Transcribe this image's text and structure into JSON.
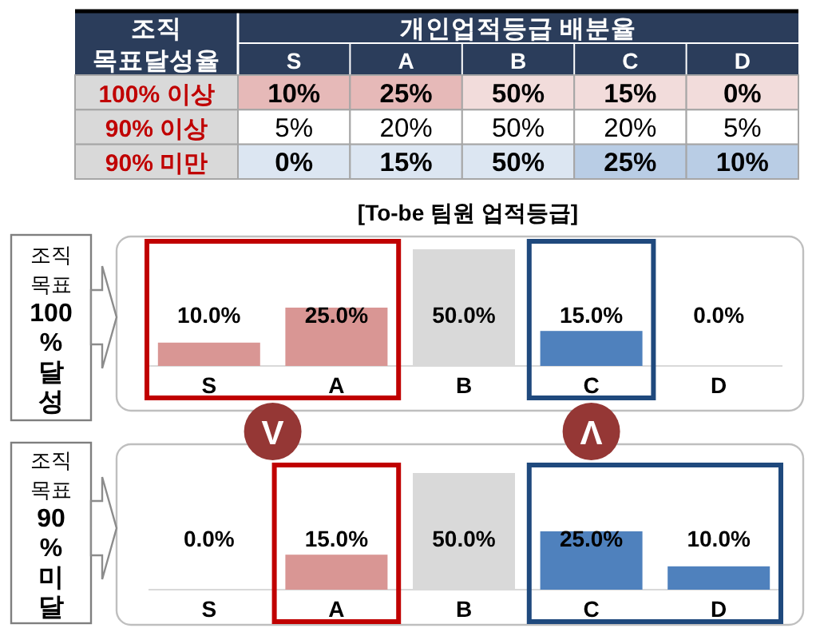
{
  "chart_data": [
    {
      "type": "heatmap",
      "xlabel": "개인업적등급 배분율",
      "ylabel": "조직 목표달성율",
      "categories": [
        "S",
        "A",
        "B",
        "C",
        "D"
      ],
      "y_categories": [
        "100% 이상",
        "90% 이상",
        "90% 미만"
      ],
      "cells": [
        [
          10,
          25,
          50,
          15,
          0
        ],
        [
          5,
          20,
          50,
          20,
          5
        ],
        [
          0,
          15,
          50,
          25,
          10
        ]
      ],
      "cell_labels": [
        [
          "10%",
          "25%",
          "50%",
          "15%",
          "0%"
        ],
        [
          "5%",
          "20%",
          "50%",
          "20%",
          "5%"
        ],
        [
          "0%",
          "15%",
          "50%",
          "25%",
          "10%"
        ]
      ],
      "colors": [
        [
          "#e6b9b8",
          "#e6b9b8",
          "#f2dcdb",
          "#f2dcdb",
          "#f2dcdb"
        ],
        [
          "#ffffff",
          "#ffffff",
          "#ffffff",
          "#ffffff",
          "#ffffff"
        ],
        [
          "#dce6f2",
          "#dce6f2",
          "#dce6f2",
          "#b9cde5",
          "#b9cde5"
        ]
      ]
    },
    {
      "type": "bar",
      "title": "[To-be 팀원 업적등급]",
      "ylabel": "조직 목표 **100% 달성**",
      "categories": [
        "S",
        "A",
        "B",
        "C",
        "D"
      ],
      "values": [
        10,
        25,
        50,
        15,
        0
      ],
      "value_labels": [
        "10.0%",
        "25.0%",
        "50.0%",
        "15.0%",
        "0.0%"
      ],
      "colors": [
        "#d99694",
        "#d99694",
        "#d9d9d9",
        "#4f81bd",
        null
      ],
      "annotations": [
        "V",
        "Λ"
      ]
    },
    {
      "type": "bar",
      "ylabel": "조직 목표 **90% 미달**",
      "categories": [
        "S",
        "A",
        "B",
        "C",
        "D"
      ],
      "values": [
        0,
        15,
        50,
        25,
        10
      ],
      "value_labels": [
        "0.0%",
        "15.0%",
        "50.0%",
        "25.0%",
        "10.0%"
      ],
      "colors": [
        null,
        "#d99694",
        "#d9d9d9",
        "#4f81bd",
        "#4f81bd"
      ]
    }
  ]
}
